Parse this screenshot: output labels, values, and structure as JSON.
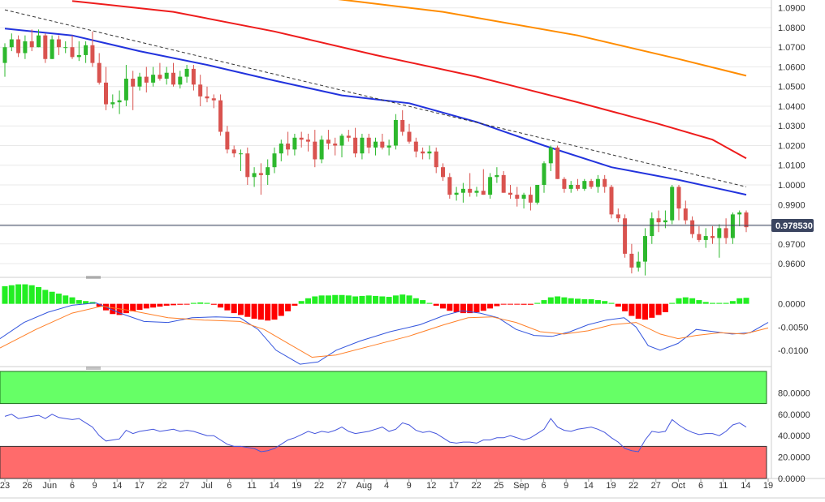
{
  "colors": {
    "up": "#2db82d",
    "down": "#d9534f",
    "sma_fast": "#2233dd",
    "sma_mid": "#ee1c1c",
    "sma_slow": "#ff8c00",
    "trendline": "#333333",
    "hist_pos": "#22ee22",
    "hist_neg": "#ff0000",
    "macd_line": "#3355dd",
    "signal_line": "#ff7f27",
    "rsi_line": "#4455dd",
    "overbought_fill": "#66ff66",
    "oversold_fill": "#ff6b6b",
    "last_price_bg": "#3b4560"
  },
  "chart_data": [
    {
      "type": "candlestick",
      "name": "price",
      "last_price_label": "0.978530",
      "ylim": [
        0.953,
        1.094
      ],
      "yticks": [
        "1.0900",
        "1.0800",
        "1.0700",
        "1.0600",
        "1.0500",
        "1.0400",
        "1.0300",
        "1.0200",
        "1.0100",
        "1.0000",
        "0.9900",
        "0.9800",
        "0.9700",
        "0.9600"
      ],
      "x_tick_labels": [
        "23",
        "26",
        "Jun",
        "6",
        "9",
        "14",
        "17",
        "22",
        "27",
        "Jul",
        "6",
        "11",
        "14",
        "19",
        "22",
        "27",
        "Aug",
        "4",
        "9",
        "12",
        "17",
        "22",
        "25",
        "Sep",
        "6",
        "9",
        "14",
        "19",
        "22",
        "27",
        "Oct",
        "6",
        "11",
        "14",
        "19"
      ],
      "candles": [
        [
          1.062,
          1.072,
          1.055,
          1.07
        ],
        [
          1.07,
          1.077,
          1.068,
          1.074
        ],
        [
          1.074,
          1.076,
          1.065,
          1.067
        ],
        [
          1.067,
          1.076,
          1.064,
          1.073
        ],
        [
          1.073,
          1.079,
          1.068,
          1.07
        ],
        [
          1.07,
          1.079,
          1.07,
          1.076
        ],
        [
          1.076,
          1.077,
          1.062,
          1.064
        ],
        [
          1.064,
          1.076,
          1.064,
          1.074
        ],
        [
          1.074,
          1.076,
          1.066,
          1.07
        ],
        [
          1.07,
          1.073,
          1.067,
          1.07
        ],
        [
          1.07,
          1.076,
          1.064,
          1.065
        ],
        [
          1.065,
          1.073,
          1.063,
          1.066
        ],
        [
          1.066,
          1.073,
          1.062,
          1.071
        ],
        [
          1.071,
          1.078,
          1.06,
          1.062
        ],
        [
          1.062,
          1.067,
          1.051,
          1.052
        ],
        [
          1.052,
          1.06,
          1.038,
          1.041
        ],
        [
          1.041,
          1.046,
          1.039,
          1.042
        ],
        [
          1.042,
          1.048,
          1.036,
          1.043
        ],
        [
          1.043,
          1.061,
          1.04,
          1.054
        ],
        [
          1.054,
          1.058,
          1.038,
          1.05
        ],
        [
          1.05,
          1.057,
          1.048,
          1.055
        ],
        [
          1.055,
          1.06,
          1.047,
          1.052
        ],
        [
          1.052,
          1.06,
          1.05,
          1.056
        ],
        [
          1.056,
          1.062,
          1.053,
          1.054
        ],
        [
          1.054,
          1.06,
          1.051,
          1.057
        ],
        [
          1.057,
          1.062,
          1.05,
          1.051
        ],
        [
          1.051,
          1.058,
          1.049,
          1.055
        ],
        [
          1.055,
          1.061,
          1.052,
          1.059
        ],
        [
          1.059,
          1.061,
          1.048,
          1.051
        ],
        [
          1.051,
          1.056,
          1.04,
          1.045
        ],
        [
          1.045,
          1.05,
          1.042,
          1.044
        ],
        [
          1.044,
          1.046,
          1.039,
          1.043
        ],
        [
          1.043,
          1.046,
          1.025,
          1.027
        ],
        [
          1.027,
          1.03,
          1.016,
          1.018
        ],
        [
          1.018,
          1.02,
          1.014,
          1.016
        ],
        [
          1.016,
          1.018,
          1.007,
          1.016
        ],
        [
          1.016,
          1.019,
          1.0,
          1.004
        ],
        [
          1.004,
          1.009,
          0.999,
          1.006
        ],
        [
          1.006,
          1.011,
          0.995,
          1.005
        ],
        [
          1.005,
          1.013,
          1.0,
          1.009
        ],
        [
          1.009,
          1.019,
          1.006,
          1.016
        ],
        [
          1.016,
          1.023,
          1.012,
          1.021
        ],
        [
          1.021,
          1.027,
          1.015,
          1.018
        ],
        [
          1.018,
          1.026,
          1.015,
          1.024
        ],
        [
          1.024,
          1.027,
          1.019,
          1.023
        ],
        [
          1.023,
          1.026,
          1.017,
          1.022
        ],
        [
          1.022,
          1.028,
          1.009,
          1.013
        ],
        [
          1.013,
          1.025,
          1.011,
          1.023
        ],
        [
          1.023,
          1.028,
          1.018,
          1.021
        ],
        [
          1.021,
          1.024,
          1.015,
          1.02
        ],
        [
          1.02,
          1.026,
          1.014,
          1.025
        ],
        [
          1.025,
          1.028,
          1.022,
          1.024
        ],
        [
          1.024,
          1.029,
          1.014,
          1.016
        ],
        [
          1.016,
          1.026,
          1.013,
          1.024
        ],
        [
          1.024,
          1.026,
          1.016,
          1.019
        ],
        [
          1.019,
          1.024,
          1.015,
          1.022
        ],
        [
          1.022,
          1.026,
          1.018,
          1.019
        ],
        [
          1.019,
          1.023,
          1.015,
          1.02
        ],
        [
          1.02,
          1.036,
          1.018,
          1.033
        ],
        [
          1.033,
          1.038,
          1.025,
          1.027
        ],
        [
          1.027,
          1.031,
          1.021,
          1.022
        ],
        [
          1.022,
          1.024,
          1.014,
          1.017
        ],
        [
          1.017,
          1.019,
          1.013,
          1.016
        ],
        [
          1.016,
          1.02,
          1.013,
          1.017
        ],
        [
          1.017,
          1.019,
          1.006,
          1.009
        ],
        [
          1.009,
          1.011,
          1.002,
          1.004
        ],
        [
          1.004,
          1.006,
          0.993,
          0.995
        ],
        [
          0.995,
          0.999,
          0.992,
          0.996
        ],
        [
          0.996,
          1.001,
          0.991,
          0.998
        ],
        [
          0.998,
          1.006,
          0.994,
          0.996
        ],
        [
          0.996,
          0.999,
          0.994,
          0.997
        ],
        [
          0.997,
          1.008,
          0.995,
          0.995
        ],
        [
          0.995,
          1.006,
          0.993,
          1.004
        ],
        [
          1.004,
          1.009,
          1.001,
          1.005
        ],
        [
          1.005,
          1.007,
          0.996,
          0.996
        ],
        [
          0.996,
          1.0,
          0.993,
          0.995
        ],
        [
          0.995,
          0.999,
          0.989,
          0.993
        ],
        [
          0.993,
          0.996,
          0.988,
          0.995
        ],
        [
          0.995,
          0.999,
          0.987,
          0.991
        ],
        [
          0.991,
          1.0,
          0.99,
          1.0
        ],
        [
          1.0,
          1.012,
          0.996,
          1.011
        ],
        [
          1.011,
          1.02,
          1.007,
          1.019
        ],
        [
          1.019,
          1.02,
          1.003,
          1.003
        ],
        [
          1.003,
          1.004,
          0.996,
          0.998
        ],
        [
          0.998,
          1.002,
          0.996,
          1.0
        ],
        [
          1.0,
          1.003,
          0.997,
          0.998
        ],
        [
          0.998,
          1.003,
          0.997,
          1.002
        ],
        [
          1.002,
          1.003,
          0.998,
          0.999
        ],
        [
          0.999,
          1.005,
          0.996,
          1.003
        ],
        [
          1.003,
          1.005,
          0.996,
          0.999
        ],
        [
          0.999,
          1.0,
          0.983,
          0.985
        ],
        [
          0.985,
          0.988,
          0.981,
          0.983
        ],
        [
          0.983,
          0.985,
          0.963,
          0.965
        ],
        [
          0.965,
          0.97,
          0.955,
          0.958
        ],
        [
          0.958,
          0.966,
          0.956,
          0.961
        ],
        [
          0.961,
          0.978,
          0.954,
          0.974
        ],
        [
          0.974,
          0.986,
          0.97,
          0.983
        ],
        [
          0.983,
          0.987,
          0.976,
          0.981
        ],
        [
          0.981,
          0.987,
          0.978,
          0.982
        ],
        [
          0.982,
          1.0,
          0.98,
          0.999
        ],
        [
          0.999,
          1.0,
          0.982,
          0.988
        ],
        [
          0.988,
          0.992,
          0.98,
          0.982
        ],
        [
          0.982,
          0.984,
          0.973,
          0.975
        ],
        [
          0.975,
          0.979,
          0.971,
          0.972
        ],
        [
          0.972,
          0.978,
          0.968,
          0.974
        ],
        [
          0.974,
          0.979,
          0.97,
          0.973
        ],
        [
          0.973,
          0.98,
          0.963,
          0.978
        ],
        [
          0.978,
          0.983,
          0.97,
          0.973
        ],
        [
          0.973,
          0.986,
          0.97,
          0.985
        ],
        [
          0.985,
          0.987,
          0.979,
          0.986
        ],
        [
          0.986,
          0.987,
          0.976,
          0.9785
        ]
      ],
      "sma_fast": [
        [
          0,
          1.0795
        ],
        [
          10,
          1.076
        ],
        [
          20,
          1.068
        ],
        [
          30,
          1.061
        ],
        [
          40,
          1.053
        ],
        [
          50,
          1.0455
        ],
        [
          60,
          1.0415
        ],
        [
          70,
          1.032
        ],
        [
          80,
          1.02
        ],
        [
          90,
          1.009
        ],
        [
          100,
          1.0025
        ],
        [
          110,
          0.995
        ]
      ],
      "sma_mid": [
        [
          10,
          1.0935
        ],
        [
          25,
          1.088
        ],
        [
          40,
          1.078
        ],
        [
          55,
          1.066
        ],
        [
          70,
          1.055
        ],
        [
          85,
          1.042
        ],
        [
          97,
          1.031
        ],
        [
          105,
          1.023
        ],
        [
          110,
          1.0135
        ]
      ],
      "sma_slow": [
        [
          48,
          1.095
        ],
        [
          65,
          1.088
        ],
        [
          85,
          1.076
        ],
        [
          100,
          1.064
        ],
        [
          110,
          1.0555
        ]
      ],
      "trendline": [
        [
          0,
          1.089
        ],
        [
          110,
          0.999
        ]
      ]
    },
    {
      "type": "macd",
      "name": "macd",
      "ylim": [
        -0.0135,
        0.005
      ],
      "yticks": [
        "0.0000",
        "-0.0050",
        "-0.0100"
      ],
      "histogram": [
        0.0038,
        0.004,
        0.0042,
        0.0042,
        0.004,
        0.0036,
        0.003,
        0.0026,
        0.0022,
        0.0018,
        0.0014,
        0.0008,
        0.0006,
        0.0004,
        -0.0006,
        -0.0014,
        -0.0022,
        -0.0024,
        -0.002,
        -0.0016,
        -0.0013,
        -0.001,
        -0.0008,
        -0.0006,
        -0.0004,
        -0.0003,
        -0.0002,
        -0.0001,
        0.0002,
        0.0003,
        0.0002,
        -0.0002,
        -0.0008,
        -0.0014,
        -0.002,
        -0.0024,
        -0.0028,
        -0.0032,
        -0.0034,
        -0.0036,
        -0.0034,
        -0.0026,
        -0.0016,
        -0.0004,
        0.0006,
        0.0012,
        0.0016,
        0.0018,
        0.0018,
        0.0019,
        0.0019,
        0.0018,
        0.0016,
        0.0017,
        0.0018,
        0.0017,
        0.0016,
        0.0015,
        0.0018,
        0.002,
        0.0018,
        0.0012,
        0.0008,
        0.0002,
        -0.0004,
        -0.001,
        -0.0015,
        -0.0018,
        -0.002,
        -0.002,
        -0.0018,
        -0.0015,
        -0.001,
        -0.0005,
        -0.0001,
        -0.0001,
        -0.0001,
        -0.0002,
        -0.0002,
        0.0002,
        0.0008,
        0.0014,
        0.0016,
        0.0014,
        0.0012,
        0.0011,
        0.001,
        0.001,
        0.0008,
        0.0006,
        0.0002,
        -0.0006,
        -0.0016,
        -0.0026,
        -0.0032,
        -0.0034,
        -0.003,
        -0.0024,
        -0.0018,
        0.0002,
        0.0012,
        0.0014,
        0.0012,
        0.0008,
        0.0004,
        0.0002,
        0.0002,
        0.0002,
        0.0006,
        0.0012,
        0.0013
      ],
      "macd_line": [
        [
          0,
          -0.0075
        ],
        [
          4,
          -0.004
        ],
        [
          8,
          -0.0018
        ],
        [
          12,
          -0.0003
        ],
        [
          16,
          0.0002
        ],
        [
          20,
          -0.002
        ],
        [
          24,
          -0.0038
        ],
        [
          28,
          -0.004
        ],
        [
          32,
          -0.003
        ],
        [
          36,
          -0.0028
        ],
        [
          40,
          -0.003
        ],
        [
          43,
          -0.0055
        ],
        [
          46,
          -0.01
        ],
        [
          50,
          -0.013
        ],
        [
          53,
          -0.0125
        ],
        [
          56,
          -0.01
        ],
        [
          60,
          -0.008
        ],
        [
          65,
          -0.006
        ],
        [
          70,
          -0.0045
        ],
        [
          74,
          -0.0025
        ],
        [
          77,
          -0.0015
        ],
        [
          80,
          -0.002
        ],
        [
          83,
          -0.003
        ],
        [
          86,
          -0.0055
        ],
        [
          89,
          -0.0068
        ],
        [
          92,
          -0.007
        ],
        [
          95,
          -0.006
        ],
        [
          98,
          -0.0045
        ],
        [
          101,
          -0.0035
        ],
        [
          104,
          -0.003
        ],
        [
          106,
          -0.005
        ],
        [
          108,
          -0.009
        ],
        [
          110,
          -0.01
        ],
        [
          113,
          -0.0085
        ],
        [
          116,
          -0.0055
        ],
        [
          119,
          -0.006
        ],
        [
          122,
          -0.0065
        ],
        [
          125,
          -0.0062
        ],
        [
          128,
          -0.004
        ]
      ],
      "signal_line": [
        [
          0,
          -0.0095
        ],
        [
          6,
          -0.0055
        ],
        [
          12,
          -0.002
        ],
        [
          17,
          -0.0005
        ],
        [
          22,
          -0.0015
        ],
        [
          28,
          -0.003
        ],
        [
          34,
          -0.0035
        ],
        [
          40,
          -0.0038
        ],
        [
          44,
          -0.0055
        ],
        [
          48,
          -0.0085
        ],
        [
          52,
          -0.0115
        ],
        [
          56,
          -0.011
        ],
        [
          62,
          -0.009
        ],
        [
          68,
          -0.007
        ],
        [
          74,
          -0.0045
        ],
        [
          78,
          -0.003
        ],
        [
          82,
          -0.0028
        ],
        [
          86,
          -0.004
        ],
        [
          90,
          -0.006
        ],
        [
          94,
          -0.0065
        ],
        [
          98,
          -0.0058
        ],
        [
          102,
          -0.0045
        ],
        [
          106,
          -0.004
        ],
        [
          110,
          -0.0065
        ],
        [
          113,
          -0.0075
        ],
        [
          116,
          -0.0068
        ],
        [
          120,
          -0.0062
        ],
        [
          124,
          -0.0065
        ],
        [
          128,
          -0.0052
        ]
      ]
    },
    {
      "type": "rsi",
      "name": "rsi",
      "ylim": [
        0,
        100
      ],
      "yticks": [
        "80.0000",
        "60.0000",
        "40.0000",
        "20.0000",
        "0.0000"
      ],
      "overbought": 70,
      "oversold": 30,
      "values": [
        58,
        60,
        56,
        57,
        58,
        59,
        56,
        60,
        57,
        56,
        55,
        56,
        52,
        48,
        40,
        35,
        36,
        37,
        45,
        42,
        44,
        45,
        46,
        44,
        45,
        46,
        44,
        45,
        44,
        42,
        40,
        40,
        36,
        32,
        30,
        30,
        29,
        28,
        25,
        26,
        28,
        32,
        36,
        38,
        41,
        44,
        42,
        44,
        43,
        45,
        48,
        44,
        42,
        43,
        44,
        46,
        48,
        44,
        46,
        52,
        50,
        45,
        43,
        44,
        42,
        38,
        34,
        33,
        34,
        34,
        33,
        36,
        36,
        38,
        38,
        40,
        38,
        36,
        38,
        42,
        46,
        56,
        48,
        45,
        44,
        46,
        47,
        48,
        46,
        43,
        38,
        34,
        28,
        26,
        25,
        36,
        44,
        43,
        44,
        55,
        50,
        46,
        43,
        41,
        42,
        42,
        40,
        44,
        50,
        52,
        48
      ]
    }
  ]
}
